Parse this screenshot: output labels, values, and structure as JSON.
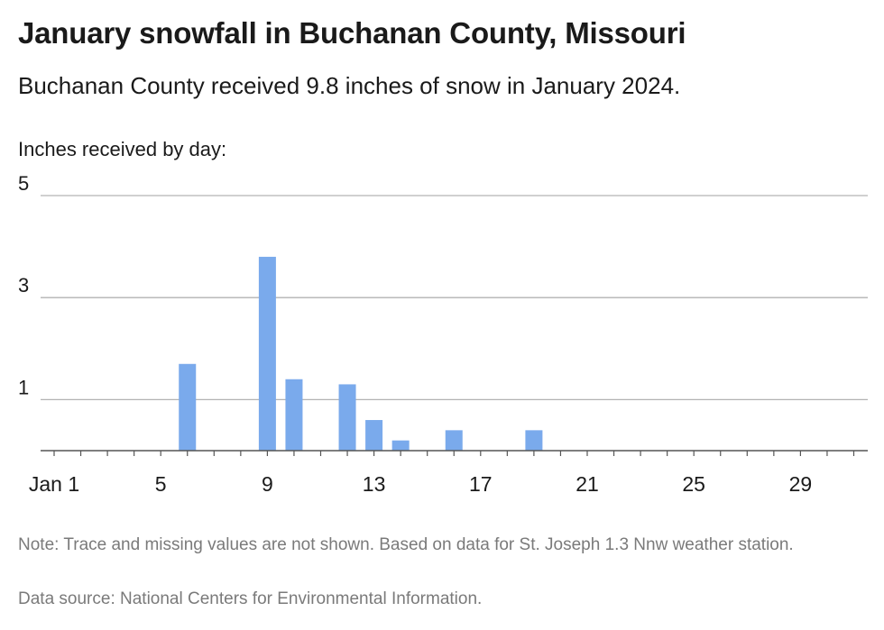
{
  "title": "January snowfall in Buchanan County, Missouri",
  "subtitle": "Buchanan County received 9.8 inches of snow in January 2024.",
  "note": "Note: Trace and missing values are not shown. Based on data for St. Joseph 1.3 Nnw weather station.",
  "source": "Data source: National Centers for Environmental Information.",
  "colors": {
    "bar": "#7aaaec",
    "grid": "#b3b3b3",
    "axis": "#555555"
  },
  "chart_data": {
    "type": "bar",
    "title": "January snowfall in Buchanan County, Missouri",
    "ylabel": "Inches received by day:",
    "xlabel": "",
    "x": [
      6,
      9,
      10,
      12,
      13,
      14,
      16,
      19
    ],
    "values": [
      1.7,
      3.8,
      1.4,
      1.3,
      0.6,
      0.2,
      0.4,
      0.4
    ],
    "xlim": [
      1,
      31
    ],
    "ylim": [
      0,
      5
    ],
    "yticks": [
      1,
      3,
      5
    ],
    "xticks": [
      1,
      5,
      9,
      13,
      17,
      21,
      25,
      29
    ],
    "xtick_labels": [
      "Jan 1",
      "5",
      "9",
      "13",
      "17",
      "21",
      "25",
      "29"
    ],
    "grid": true,
    "legend": "none"
  }
}
